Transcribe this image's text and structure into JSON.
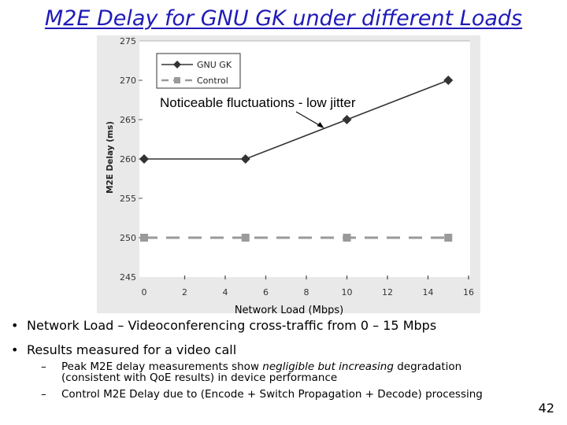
{
  "slide": {
    "title": "M2E Delay for GNU GK under different Loads",
    "page_number": "42"
  },
  "bullets": [
    {
      "text": "Network Load – Videoconferencing cross-traffic from 0 – 15 Mbps"
    },
    {
      "text": "Results measured for a video call"
    }
  ],
  "subbullets": [
    {
      "pre": "Peak M2E delay measurements show ",
      "em": "negligible but increasing",
      "post": " degradation",
      "cont": "(consistent with QoE results) in device performance"
    },
    {
      "pre": "Control M2E Delay due to (Encode + Switch Propagation + Decode) processing",
      "em": "",
      "post": "",
      "cont": ""
    }
  ],
  "chart_data": {
    "type": "line",
    "title": "",
    "xlabel": "Network Load (Mbps)",
    "ylabel": "M2E Delay (ms)",
    "xlim": [
      0,
      16
    ],
    "ylim": [
      245,
      275
    ],
    "x_ticks": [
      0,
      2,
      4,
      6,
      8,
      10,
      12,
      14,
      16
    ],
    "y_ticks": [
      245,
      250,
      255,
      260,
      265,
      270,
      275
    ],
    "legend_position": "top-left",
    "grid": false,
    "series": [
      {
        "name": "GNU GK",
        "color": "#333333",
        "marker": "diamond",
        "line_style": "solid",
        "x": [
          0,
          5,
          10,
          15
        ],
        "y": [
          260,
          260,
          265,
          270
        ]
      },
      {
        "name": "Control",
        "color": "#9a9a9a",
        "marker": "square",
        "line_style": "dashed",
        "x": [
          0,
          5,
          10,
          15
        ],
        "y": [
          250,
          250,
          250,
          250
        ]
      }
    ],
    "annotation": {
      "text": "Noticeable fluctuations - low jitter",
      "target_x": 10,
      "target_y": 265
    }
  }
}
